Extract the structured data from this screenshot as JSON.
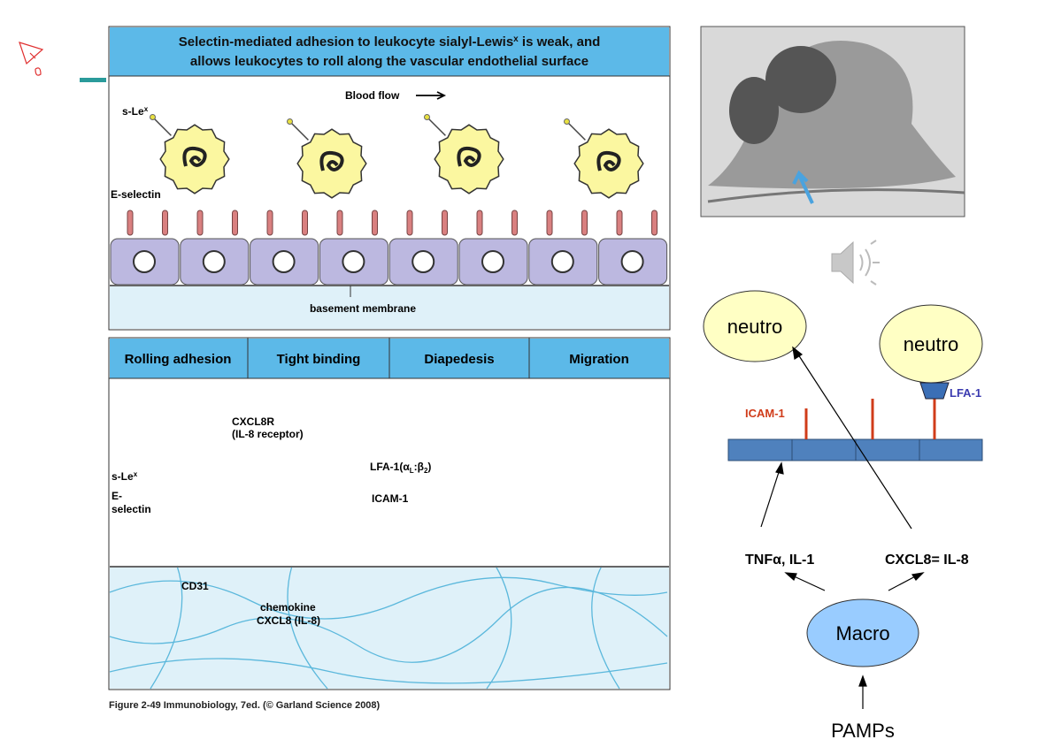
{
  "panel_top": {
    "title_before": "Selectin-mediated adhesion to leukocyte sialyl-Lewis",
    "title_sup": "x",
    "title_after": " is weak, and",
    "title_line2": "allows leukocytes to roll along the vascular endothelial surface",
    "slex": "s-Le",
    "slex_sup": "x",
    "blood_flow": "Blood flow",
    "e_selectin": "E-selectin",
    "basement_membrane": "basement membrane"
  },
  "panel_bottom": {
    "headers": [
      "Rolling adhesion",
      "Tight binding",
      "Diapedesis",
      "Migration"
    ],
    "cxcl8r": "CXCL8R",
    "il8_receptor": "(IL-8 receptor)",
    "slex": "s-Le",
    "slex_sup": "x",
    "e_line1": "E-",
    "e_line2": "selectin",
    "lfa1_parts": [
      "LFA-1(α",
      "L",
      ":β",
      "2",
      ")"
    ],
    "icam1": "ICAM-1",
    "cd31": "CD31",
    "chemokine": "chemokine",
    "cxcl8": "CXCL8 (IL-8)"
  },
  "caption": "Figure 2-49 Immunobiology, 7ed. (© Garland Science 2008)",
  "schema": {
    "neutro_left": "neutro",
    "neutro_right": "neutro",
    "lfa1": "LFA-1",
    "icam1": "ICAM-1",
    "tnf": "TNFα, IL-1",
    "cxcl8": "CXCL8= IL-8",
    "macro": "Macro",
    "pamps": "PAMPs"
  }
}
